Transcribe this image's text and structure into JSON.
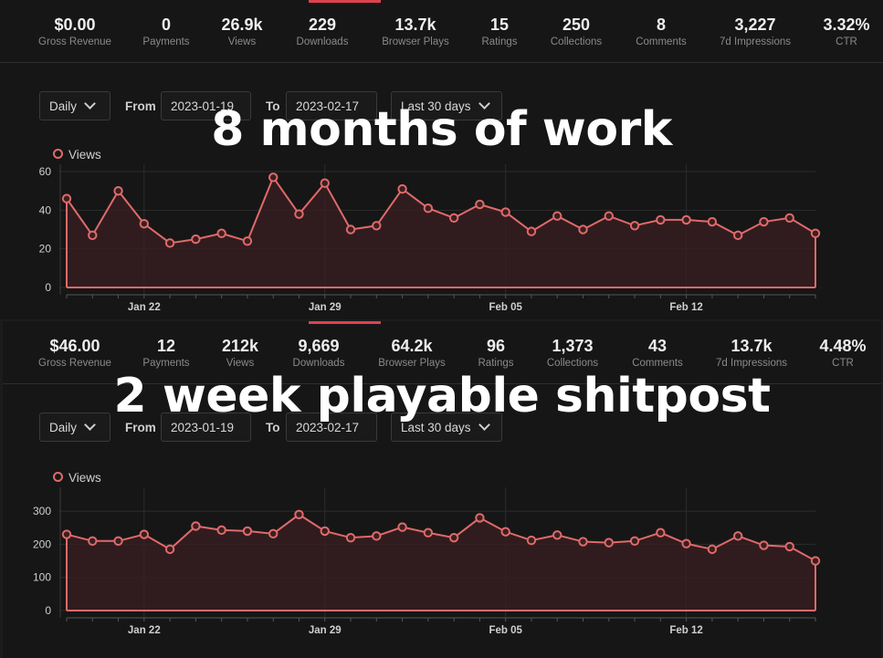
{
  "accent_color": "#e06a6a",
  "panels": [
    {
      "overlay_text": "8 months of work",
      "stats": [
        {
          "value": "$0.00",
          "label": "Gross Revenue"
        },
        {
          "value": "0",
          "label": "Payments"
        },
        {
          "value": "26.9k",
          "label": "Views"
        },
        {
          "value": "229",
          "label": "Downloads"
        },
        {
          "value": "13.7k",
          "label": "Browser Plays"
        },
        {
          "value": "15",
          "label": "Ratings"
        },
        {
          "value": "250",
          "label": "Collections"
        },
        {
          "value": "8",
          "label": "Comments"
        },
        {
          "value": "3,227",
          "label": "7d Impressions"
        },
        {
          "value": "3.32%",
          "label": "CTR"
        }
      ],
      "controls": {
        "interval": "Daily",
        "from_label": "From",
        "from_date": "2023-01-19",
        "to_label": "To",
        "to_date": "2023-02-17",
        "range": "Last 30 days"
      },
      "chart_data": {
        "type": "line",
        "legend": "Views",
        "x": [
          "2023-01-19",
          "2023-01-20",
          "2023-01-21",
          "2023-01-22",
          "2023-01-23",
          "2023-01-24",
          "2023-01-25",
          "2023-01-26",
          "2023-01-27",
          "2023-01-28",
          "2023-01-29",
          "2023-01-30",
          "2023-01-31",
          "2023-02-01",
          "2023-02-02",
          "2023-02-03",
          "2023-02-04",
          "2023-02-05",
          "2023-02-06",
          "2023-02-07",
          "2023-02-08",
          "2023-02-09",
          "2023-02-10",
          "2023-02-11",
          "2023-02-12",
          "2023-02-13",
          "2023-02-14",
          "2023-02-15",
          "2023-02-16",
          "2023-02-17"
        ],
        "values": [
          46,
          27,
          50,
          33,
          23,
          25,
          28,
          24,
          57,
          38,
          54,
          30,
          32,
          51,
          41,
          36,
          43,
          39,
          29,
          37,
          30,
          37,
          32,
          35,
          35,
          34,
          27,
          34,
          36,
          28
        ],
        "ylim": [
          0,
          60
        ],
        "yticks": [
          0,
          20,
          40,
          60
        ],
        "xtick_labels": [
          "Jan 22",
          "Jan 29",
          "Feb 05",
          "Feb 12"
        ]
      }
    },
    {
      "overlay_text": "2 week playable shitpost",
      "stats": [
        {
          "value": "$46.00",
          "label": "Gross Revenue"
        },
        {
          "value": "12",
          "label": "Payments"
        },
        {
          "value": "212k",
          "label": "Views"
        },
        {
          "value": "9,669",
          "label": "Downloads"
        },
        {
          "value": "64.2k",
          "label": "Browser Plays"
        },
        {
          "value": "96",
          "label": "Ratings"
        },
        {
          "value": "1,373",
          "label": "Collections"
        },
        {
          "value": "43",
          "label": "Comments"
        },
        {
          "value": "13.7k",
          "label": "7d Impressions"
        },
        {
          "value": "4.48%",
          "label": "CTR"
        }
      ],
      "controls": {
        "interval": "Daily",
        "from_label": "From",
        "from_date": "2023-01-19",
        "to_label": "To",
        "to_date": "2023-02-17",
        "range": "Last 30 days"
      },
      "chart_data": {
        "type": "line",
        "legend": "Views",
        "x": [
          "2023-01-19",
          "2023-01-20",
          "2023-01-21",
          "2023-01-22",
          "2023-01-23",
          "2023-01-24",
          "2023-01-25",
          "2023-01-26",
          "2023-01-27",
          "2023-01-28",
          "2023-01-29",
          "2023-01-30",
          "2023-01-31",
          "2023-02-01",
          "2023-02-02",
          "2023-02-03",
          "2023-02-04",
          "2023-02-05",
          "2023-02-06",
          "2023-02-07",
          "2023-02-08",
          "2023-02-09",
          "2023-02-10",
          "2023-02-11",
          "2023-02-12",
          "2023-02-13",
          "2023-02-14",
          "2023-02-15",
          "2023-02-16",
          "2023-02-17"
        ],
        "values": [
          230,
          210,
          210,
          230,
          185,
          255,
          243,
          240,
          232,
          290,
          240,
          220,
          225,
          252,
          235,
          220,
          280,
          238,
          212,
          228,
          208,
          205,
          210,
          235,
          202,
          185,
          225,
          197,
          193,
          150
        ],
        "ylim": [
          0,
          350
        ],
        "yticks": [
          0,
          100,
          200,
          300
        ],
        "xtick_labels": [
          "Jan 22",
          "Jan 29",
          "Feb 05",
          "Feb 12"
        ]
      }
    }
  ]
}
